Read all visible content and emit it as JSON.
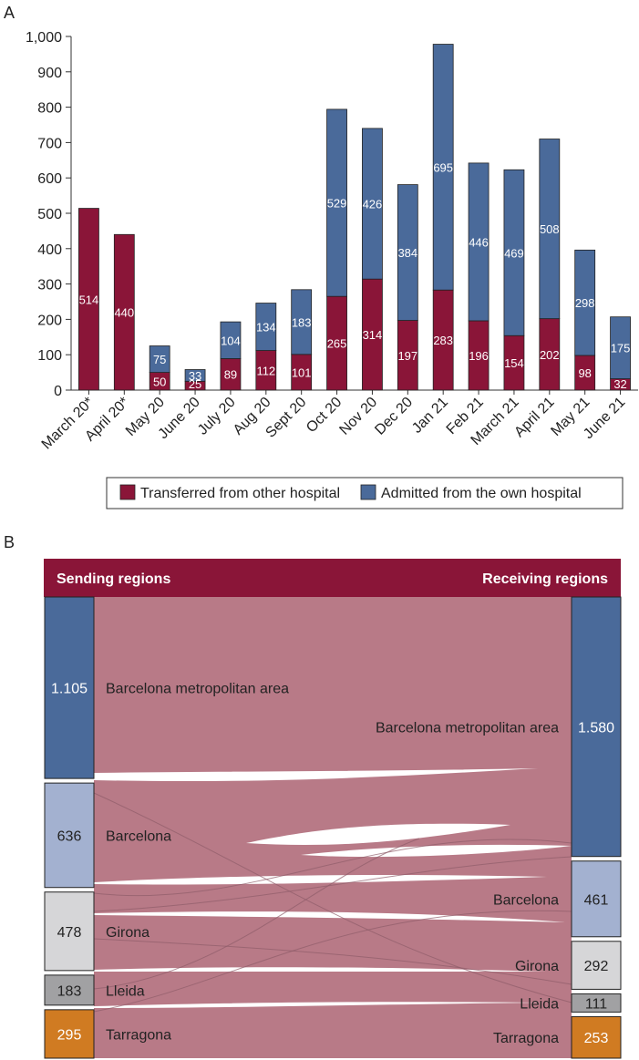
{
  "colors": {
    "transferred": "#8a1538",
    "admitted": "#4a6a9a",
    "flow": "#b87a87",
    "header": "#8a1538",
    "region_metro": "#4a6a9a",
    "region_barcelona": "#a3b1d0",
    "region_girona": "#d6d6d8",
    "region_lleida": "#a1a1a3",
    "region_tarragona": "#d07b22"
  },
  "chart_data": [
    {
      "type": "bar",
      "panel_label": "A",
      "stacked": true,
      "categories": [
        "March 20*",
        "April 20*",
        "May 20",
        "June 20",
        "July 20",
        "Aug 20",
        "Sept 20",
        "Oct 20",
        "Nov 20",
        "Dec 20",
        "Jan 21",
        "Feb 21",
        "March 21",
        "April 21",
        "May 21",
        "June 21"
      ],
      "series": [
        {
          "name": "Transferred from other hospital",
          "values": [
            514,
            440,
            50,
            25,
            89,
            112,
            101,
            265,
            314,
            197,
            283,
            196,
            154,
            202,
            98,
            32
          ]
        },
        {
          "name": "Admitted from the own hospital",
          "values": [
            null,
            null,
            75,
            33,
            104,
            134,
            183,
            529,
            426,
            384,
            695,
            446,
            469,
            508,
            298,
            175
          ]
        }
      ],
      "ylim": [
        0,
        1000
      ],
      "yticks": [
        0,
        100,
        200,
        300,
        400,
        500,
        600,
        700,
        800,
        900,
        1000
      ],
      "ytick_labels": [
        "0",
        "100",
        "200",
        "300",
        "400",
        "500",
        "600",
        "700",
        "800",
        "900",
        "1,000"
      ],
      "xlabel": "",
      "ylabel": "",
      "legend": "bottom"
    },
    {
      "type": "sankey",
      "panel_label": "B",
      "left_header": "Sending regions",
      "right_header": "Receiving regions",
      "sending": [
        {
          "name": "Barcelona metropolitan area",
          "value": 1105,
          "label": "1.105"
        },
        {
          "name": "Barcelona",
          "value": 636,
          "label": "636"
        },
        {
          "name": "Girona",
          "value": 478,
          "label": "478"
        },
        {
          "name": "Lleida",
          "value": 183,
          "label": "183"
        },
        {
          "name": "Tarragona",
          "value": 295,
          "label": "295"
        }
      ],
      "receiving": [
        {
          "name": "Barcelona metropolitan area",
          "value": 1580,
          "label": "1.580"
        },
        {
          "name": "Barcelona",
          "value": 461,
          "label": "461"
        },
        {
          "name": "Girona",
          "value": 292,
          "label": "292"
        },
        {
          "name": "Lleida",
          "value": 111,
          "label": "111"
        },
        {
          "name": "Tarragona",
          "value": 253,
          "label": "253"
        }
      ]
    }
  ]
}
